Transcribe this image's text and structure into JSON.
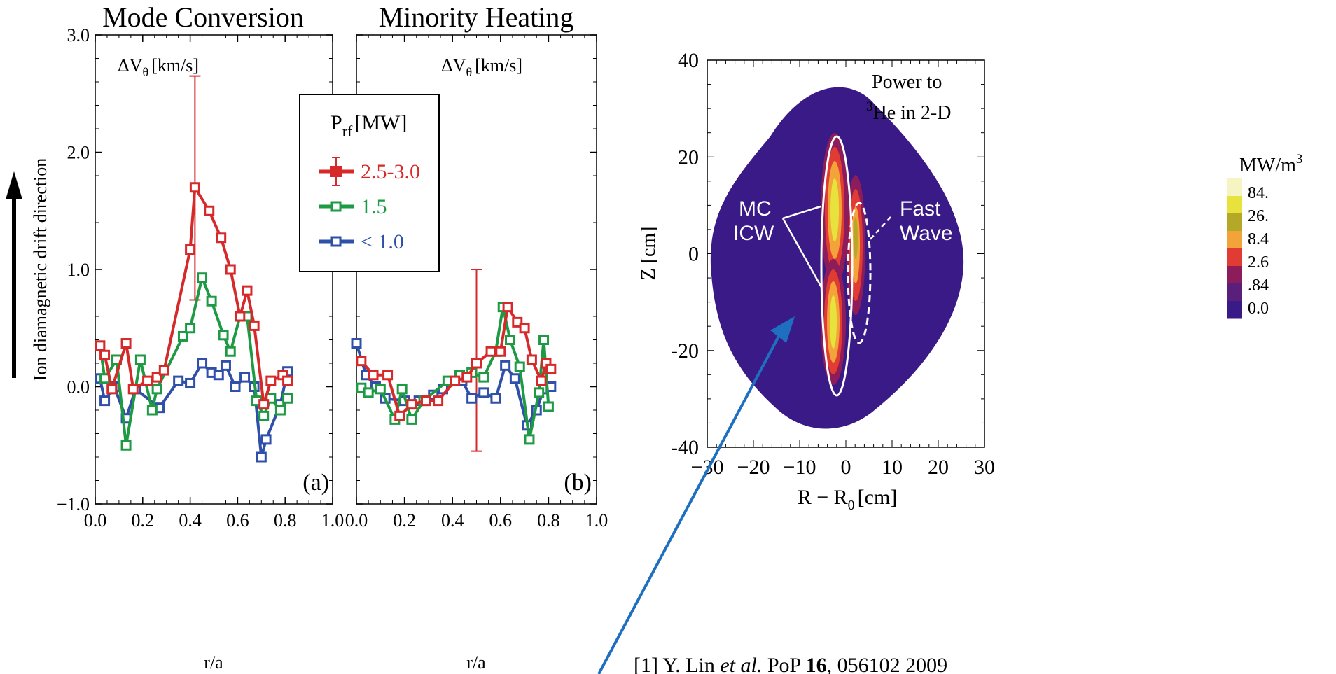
{
  "chart_data": [
    {
      "type": "line",
      "panel": "a",
      "title": "Mode Conversion",
      "annotation": "ΔV",
      "annotation_sub": "θ",
      "annotation_unit": "[km/s]",
      "panel_label": "(a)",
      "xlabel": "r/a",
      "ylabel": "Ion diamagnetic drift direction",
      "xlim": [
        0.0,
        1.0
      ],
      "ylim": [
        -1.0,
        3.0
      ],
      "xticks": [
        "0.0",
        "0.2",
        "0.4",
        "0.6",
        "0.8",
        "1.0"
      ],
      "yticks": [
        "−1.0",
        "0.0",
        "1.0",
        "2.0",
        "3.0"
      ],
      "legend": {
        "title_main": "P",
        "title_sub": "rf",
        "title_unit": "[MW]",
        "placement": "center",
        "entries": [
          "2.5-3.0",
          "1.5",
          "< 1.0"
        ]
      },
      "series": [
        {
          "name": "2.5-3.0",
          "color": "#d62a2a",
          "x": [
            0.02,
            0.04,
            0.07,
            0.13,
            0.16,
            0.22,
            0.26,
            0.29,
            0.4,
            0.42,
            0.48,
            0.53,
            0.57,
            0.61,
            0.64,
            0.67,
            0.71,
            0.74,
            0.79,
            0.81
          ],
          "y": [
            0.35,
            0.27,
            -0.02,
            0.37,
            -0.02,
            0.05,
            0.08,
            0.14,
            1.17,
            1.7,
            1.5,
            1.27,
            1.0,
            0.6,
            0.82,
            0.52,
            -0.15,
            0.05,
            0.1,
            0.05
          ]
        },
        {
          "name": "1.5",
          "color": "#1e9a45",
          "x": [
            0.02,
            0.04,
            0.09,
            0.13,
            0.19,
            0.24,
            0.26,
            0.37,
            0.4,
            0.45,
            0.49,
            0.54,
            0.57,
            0.61,
            0.64,
            0.68,
            0.71,
            0.74,
            0.78,
            0.81
          ],
          "y": [
            0.35,
            0.07,
            0.23,
            -0.5,
            0.23,
            -0.2,
            -0.02,
            0.43,
            0.5,
            0.93,
            0.73,
            0.44,
            0.3,
            0.6,
            0.6,
            -0.12,
            -0.25,
            -0.1,
            -0.2,
            -0.1
          ]
        },
        {
          "name": "< 1.0",
          "color": "#2f4fa8",
          "x": [
            0.02,
            0.04,
            0.08,
            0.13,
            0.17,
            0.27,
            0.35,
            0.4,
            0.45,
            0.49,
            0.52,
            0.55,
            0.59,
            0.63,
            0.67,
            0.7,
            0.72,
            0.78,
            0.81
          ],
          "y": [
            0.07,
            -0.12,
            0.0,
            -0.27,
            -0.02,
            -0.18,
            0.05,
            0.03,
            0.2,
            0.12,
            0.1,
            0.18,
            0.0,
            0.08,
            0.0,
            -0.6,
            -0.45,
            -0.15,
            0.13
          ]
        }
      ],
      "error_bars": [
        {
          "x": 0.42,
          "low": 0.74,
          "high": 2.65,
          "color": "#d62a2a"
        }
      ]
    },
    {
      "type": "line",
      "panel": "b",
      "title": "Minority Heating",
      "annotation": "ΔV",
      "annotation_sub": "θ",
      "annotation_unit": "[km/s]",
      "panel_label": "(b)",
      "xlabel": "r/a",
      "xlim": [
        0.0,
        1.0
      ],
      "ylim": [
        -1.0,
        3.0
      ],
      "xticks": [
        "0.0",
        "0.2",
        "0.4",
        "0.6",
        "0.8",
        "1.0"
      ],
      "series": [
        {
          "name": "2.5-3.0",
          "color": "#d62a2a",
          "x": [
            0.02,
            0.07,
            0.13,
            0.18,
            0.23,
            0.29,
            0.34,
            0.41,
            0.46,
            0.5,
            0.56,
            0.6,
            0.63,
            0.67,
            0.7,
            0.73,
            0.77,
            0.79,
            0.81
          ],
          "y": [
            0.22,
            0.1,
            0.1,
            -0.25,
            -0.15,
            -0.12,
            -0.12,
            0.05,
            0.08,
            0.2,
            0.3,
            0.3,
            0.68,
            0.55,
            0.5,
            0.23,
            0.05,
            0.2,
            0.15
          ]
        },
        {
          "name": "1.5",
          "color": "#1e9a45",
          "x": [
            0.02,
            0.05,
            0.1,
            0.16,
            0.19,
            0.23,
            0.28,
            0.38,
            0.43,
            0.48,
            0.53,
            0.58,
            0.61,
            0.64,
            0.68,
            0.72,
            0.76,
            0.78,
            0.8
          ],
          "y": [
            -0.01,
            -0.05,
            -0.02,
            -0.28,
            -0.02,
            -0.28,
            -0.12,
            0.05,
            0.1,
            0.12,
            0.08,
            0.3,
            0.68,
            0.4,
            0.17,
            -0.45,
            -0.05,
            0.4,
            -0.17
          ]
        },
        {
          "name": "< 1.0",
          "color": "#2f4fa8",
          "x": [
            0.0,
            0.04,
            0.08,
            0.12,
            0.2,
            0.26,
            0.32,
            0.36,
            0.44,
            0.48,
            0.53,
            0.58,
            0.62,
            0.66,
            0.71,
            0.75,
            0.78,
            0.81
          ],
          "y": [
            0.37,
            0.1,
            0.0,
            -0.1,
            -0.12,
            -0.12,
            -0.07,
            -0.02,
            0.05,
            -0.1,
            -0.05,
            -0.1,
            0.18,
            0.07,
            -0.33,
            -0.2,
            -0.02,
            0.0
          ]
        }
      ],
      "error_bars": [
        {
          "x": 0.5,
          "low": -0.55,
          "high": 1.0,
          "color": "#d62a2a"
        }
      ]
    },
    {
      "type": "heatmap",
      "panel": "c",
      "title_line1": "Power to",
      "title_line2": "He in 2-D",
      "title_sup": "3",
      "xlabel_main": "R − R",
      "xlabel_sub": "0",
      "xlabel_unit": "[cm]",
      "ylabel": "Z [cm]",
      "xlim": [
        -30,
        30
      ],
      "ylim": [
        -40,
        40
      ],
      "xticks": [
        "−30",
        "−20",
        "−10",
        "0",
        "10",
        "20",
        "30"
      ],
      "yticks": [
        "-40",
        "-20",
        "0",
        "20",
        "40"
      ],
      "colorbar": {
        "unit_main": "MW/m",
        "unit_sup": "3",
        "levels": [
          "84.",
          "26.",
          "8.4",
          "2.6",
          ".84",
          "0.0"
        ],
        "colors": [
          "#f6f4c3",
          "#e8e23c",
          "#b6a827",
          "#f2a33a",
          "#e03c34",
          "#8c1c5a",
          "#5a1f7a",
          "#3a1a86"
        ]
      },
      "annotations": [
        {
          "line1": "MC",
          "line2": "ICW"
        },
        {
          "line1": "Fast",
          "line2": "Wave"
        }
      ]
    }
  ],
  "arrow_label": "",
  "citation": {
    "prefix": "[1] Y. Lin ",
    "etal": "et al.",
    "journal": " PoP ",
    "volume": "16",
    "rest": ", 056102 2009"
  }
}
